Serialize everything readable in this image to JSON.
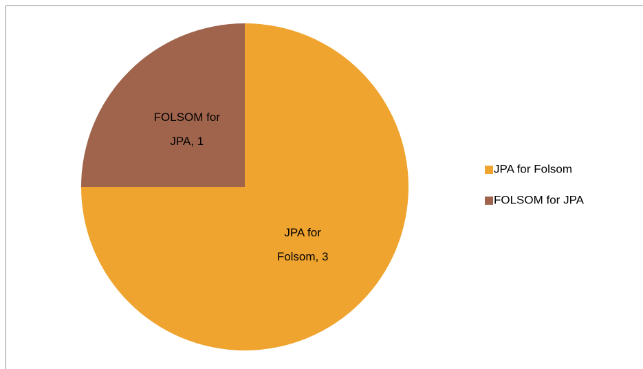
{
  "chart_data": {
    "type": "pie",
    "categories": [
      "JPA for Folsom",
      "FOLSOM for JPA"
    ],
    "values": [
      3,
      1
    ],
    "value_labels": [
      "JPA for Folsom, 3",
      "FOLSOM for JPA, 1"
    ],
    "colors": [
      "#f0a430",
      "#a0644c"
    ],
    "legend": "right"
  }
}
